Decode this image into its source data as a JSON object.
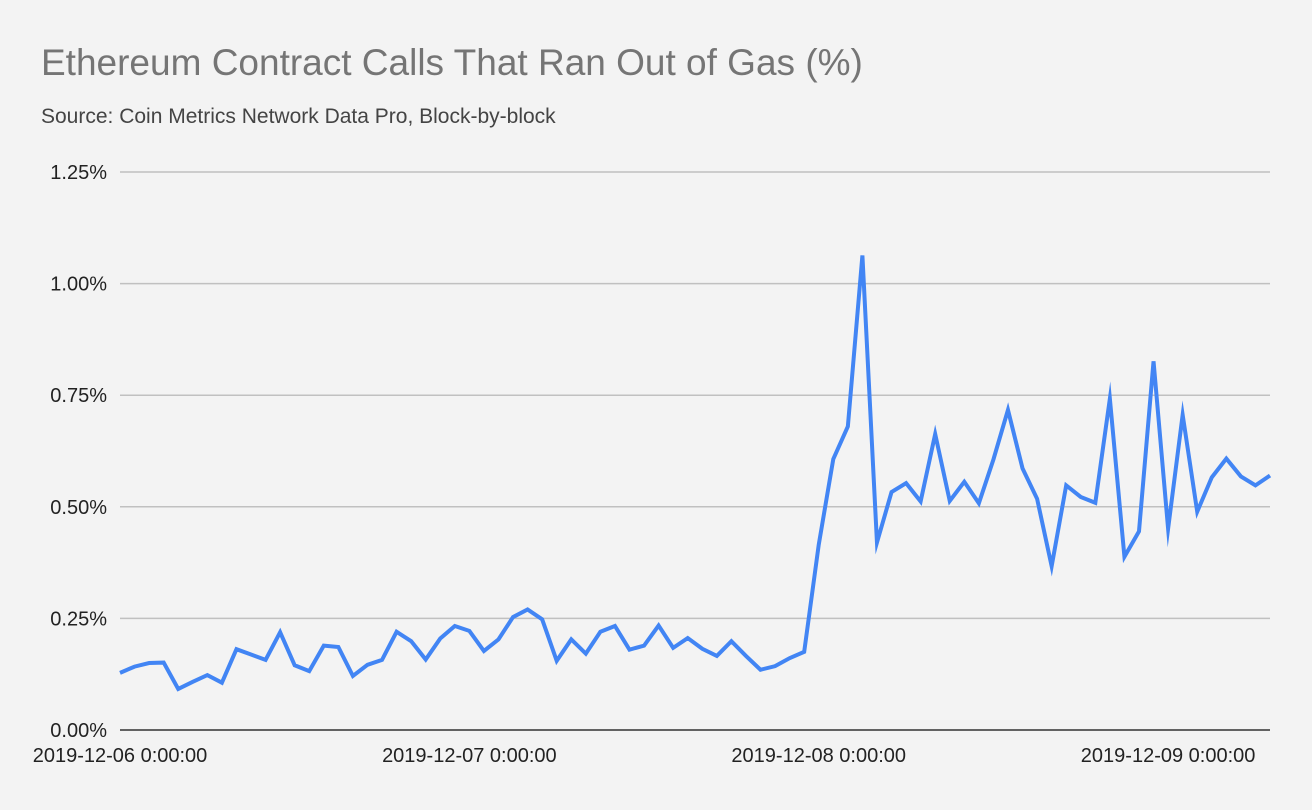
{
  "chart_data": {
    "type": "line",
    "title": "Ethereum Contract Calls That Ran Out of Gas (%)",
    "subtitle": "Source: Coin Metrics Network Data Pro, Block-by-block",
    "xlabel": "",
    "ylabel": "",
    "ylim": [
      0,
      1.25
    ],
    "yticks": [
      0,
      0.25,
      0.5,
      0.75,
      1.0,
      1.25
    ],
    "ytick_labels": [
      "0.00%",
      "0.25%",
      "0.50%",
      "0.75%",
      "1.00%",
      "1.25%"
    ],
    "x_start": "2019-12-06 0:00:00",
    "x_interval_hours": 1,
    "xtick_labels": [
      "2019-12-06 0:00:00",
      "2019-12-07 0:00:00",
      "2019-12-08 0:00:00",
      "2019-12-09 0:00:00"
    ],
    "xtick_index": [
      0,
      24,
      48,
      72
    ],
    "grid": true,
    "colors": {
      "line": "#4285f4",
      "grid": "#c0c0c0",
      "axis": "#333333",
      "background": "#f3f3f3"
    },
    "series": [
      {
        "values": [
          0.128,
          0.142,
          0.15,
          0.151,
          0.092,
          0.108,
          0.123,
          0.106,
          0.181,
          0.169,
          0.157,
          0.219,
          0.145,
          0.132,
          0.189,
          0.186,
          0.121,
          0.146,
          0.157,
          0.22,
          0.199,
          0.158,
          0.205,
          0.233,
          0.222,
          0.177,
          0.203,
          0.253,
          0.27,
          0.248,
          0.155,
          0.203,
          0.171,
          0.22,
          0.233,
          0.18,
          0.189,
          0.234,
          0.184,
          0.206,
          0.182,
          0.166,
          0.199,
          0.166,
          0.135,
          0.143,
          0.161,
          0.175,
          0.415,
          0.607,
          0.68,
          1.063,
          0.42,
          0.533,
          0.553,
          0.512,
          0.663,
          0.513,
          0.556,
          0.508,
          0.606,
          0.717,
          0.586,
          0.518,
          0.367,
          0.548,
          0.522,
          0.509,
          0.742,
          0.388,
          0.445,
          0.826,
          0.451,
          0.706,
          0.489,
          0.566,
          0.608,
          0.568,
          0.548,
          0.57
        ]
      }
    ]
  }
}
